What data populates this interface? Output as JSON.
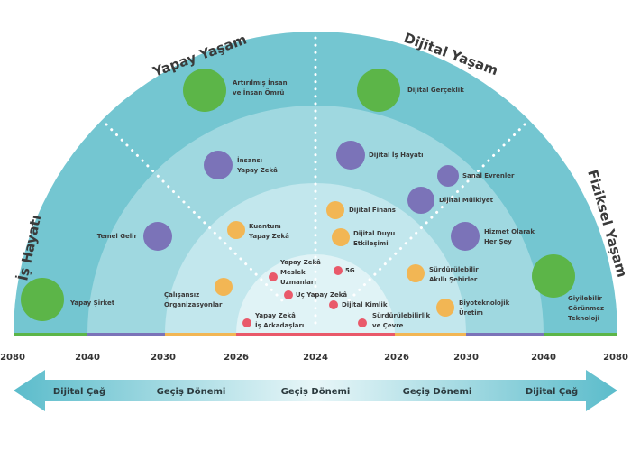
{
  "titles": {
    "left": "İş Hayatı",
    "upper_left": "Yapay Yaşam",
    "upper_right": "Dijital Yaşam",
    "right": "Fiziksel Yaşam"
  },
  "years": [
    "2080",
    "2040",
    "2030",
    "2026",
    "2024",
    "2026",
    "2030",
    "2040",
    "2080"
  ],
  "arrow_labels": [
    "Dijital Çağ",
    "Geçiş Dönemi",
    "Geçiş Dönemi",
    "Geçiş Dönemi",
    "Dijital Çağ"
  ],
  "colors": {
    "green": "#5cb548",
    "purple": "#7b73b8",
    "orange": "#f2b654",
    "red": "#e9596a",
    "ring_outer": "#74c6d1",
    "ring_2": "#9fd8e0",
    "ring_3": "#c2e7ed",
    "ring_inner": "#e0f3f6"
  },
  "items": [
    {
      "label": [
        "Yapay Şirket"
      ],
      "color": "green"
    },
    {
      "label": [
        "Temel Gelir"
      ],
      "color": "purple"
    },
    {
      "label": [
        "Artırılmış İnsan",
        "ve İnsan Ömrü"
      ],
      "color": "green"
    },
    {
      "label": [
        "İnsansı",
        "Yapay Zekâ"
      ],
      "color": "purple"
    },
    {
      "label": [
        "Kuantum",
        "Yapay Zekâ"
      ],
      "color": "orange"
    },
    {
      "label": [
        "Çalışansız",
        "Organizasyonlar"
      ],
      "color": "orange"
    },
    {
      "label": [
        "Yapay Zekâ",
        "Meslek",
        "Uzmanları"
      ],
      "color": "red"
    },
    {
      "label": [
        "Uç Yapay Zekâ"
      ],
      "color": "red"
    },
    {
      "label": [
        "Yapay Zekâ",
        "İş Arkadaşları"
      ],
      "color": "red"
    },
    {
      "label": [
        "Dijital Gerçeklik"
      ],
      "color": "green"
    },
    {
      "label": [
        "Dijital İş Hayatı"
      ],
      "color": "purple"
    },
    {
      "label": [
        "Sanal Evrenler"
      ],
      "color": "purple"
    },
    {
      "label": [
        "Dijital Mülkiyet"
      ],
      "color": "purple"
    },
    {
      "label": [
        "Dijital Finans"
      ],
      "color": "orange"
    },
    {
      "label": [
        "Dijital Duyu",
        "Etkileşimi"
      ],
      "color": "orange"
    },
    {
      "label": [
        "Hizmet Olarak",
        "Her Şey"
      ],
      "color": "purple"
    },
    {
      "label": [
        "5G"
      ],
      "color": "red"
    },
    {
      "label": [
        "Sürdürülebilir",
        "Akıllı Şehirler"
      ],
      "color": "orange"
    },
    {
      "label": [
        "Biyoteknolojik",
        "Üretim"
      ],
      "color": "orange"
    },
    {
      "label": [
        "Dijital Kimlik"
      ],
      "color": "red"
    },
    {
      "label": [
        "Sürdürülebilirlik",
        "ve Çevre"
      ],
      "color": "red"
    },
    {
      "label": [
        "Giyilebilir",
        "Görünmez",
        "Teknoloji"
      ],
      "color": "green"
    }
  ]
}
